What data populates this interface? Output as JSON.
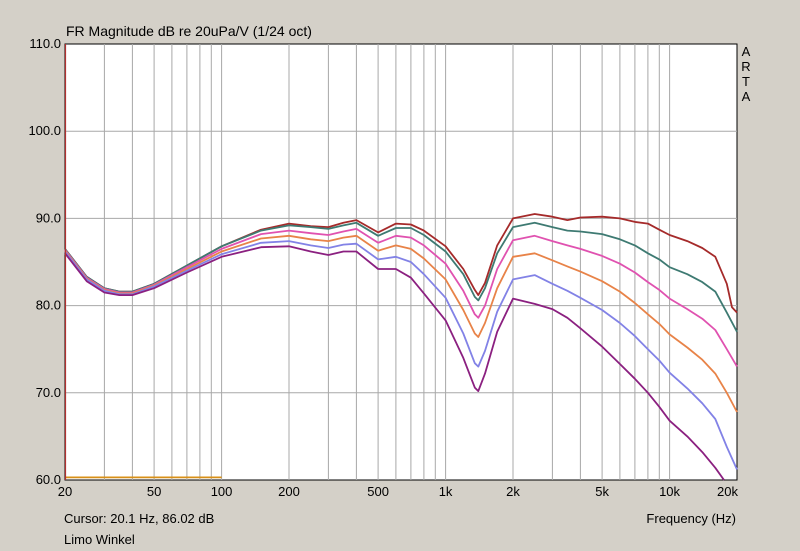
{
  "chart_data": {
    "type": "line",
    "title": "FR Magnitude dB re 20uPa/V (1/24 oct)",
    "xlabel": "Frequency (Hz)",
    "ylabel": "",
    "x_scale": "log",
    "xlim": [
      20,
      20000
    ],
    "ylim": [
      60,
      110
    ],
    "x_ticks": [
      20,
      50,
      100,
      200,
      500,
      1000,
      2000,
      5000,
      10000,
      20000
    ],
    "x_tick_labels": [
      "20",
      "50",
      "100",
      "200",
      "500",
      "1k",
      "2k",
      "5k",
      "10k",
      "20k"
    ],
    "y_ticks": [
      60,
      70,
      80,
      90,
      100,
      110
    ],
    "y_tick_labels": [
      "60.0",
      "70.0",
      "80.0",
      "90.0",
      "100.0",
      "110.0"
    ],
    "grid": true,
    "series": [
      {
        "color": "#a52a2a",
        "points": [
          [
            20,
            86.5
          ],
          [
            25,
            83.3
          ],
          [
            30,
            82.0
          ],
          [
            35,
            81.6
          ],
          [
            40,
            81.6
          ],
          [
            50,
            82.5
          ],
          [
            70,
            84.6
          ],
          [
            100,
            86.8
          ],
          [
            150,
            88.7
          ],
          [
            200,
            89.4
          ],
          [
            250,
            89.1
          ],
          [
            300,
            89.0
          ],
          [
            350,
            89.5
          ],
          [
            400,
            89.8
          ],
          [
            500,
            88.4
          ],
          [
            600,
            89.4
          ],
          [
            700,
            89.3
          ],
          [
            800,
            88.6
          ],
          [
            1000,
            86.8
          ],
          [
            1200,
            84.2
          ],
          [
            1350,
            81.8
          ],
          [
            1400,
            81.2
          ],
          [
            1500,
            82.6
          ],
          [
            1700,
            86.9
          ],
          [
            2000,
            90.0
          ],
          [
            2500,
            90.5
          ],
          [
            3000,
            90.2
          ],
          [
            3500,
            89.8
          ],
          [
            4000,
            90.1
          ],
          [
            5000,
            90.2
          ],
          [
            6000,
            90.0
          ],
          [
            7000,
            89.6
          ],
          [
            8000,
            89.4
          ],
          [
            9000,
            88.7
          ],
          [
            10000,
            88.1
          ],
          [
            12000,
            87.4
          ],
          [
            14000,
            86.6
          ],
          [
            16000,
            85.6
          ],
          [
            18000,
            82.5
          ],
          [
            19000,
            79.8
          ],
          [
            20000,
            79.2
          ]
        ]
      },
      {
        "color": "#3e7a72",
        "points": [
          [
            20,
            86.5
          ],
          [
            25,
            83.3
          ],
          [
            30,
            82.0
          ],
          [
            35,
            81.6
          ],
          [
            40,
            81.6
          ],
          [
            50,
            82.5
          ],
          [
            70,
            84.6
          ],
          [
            100,
            86.8
          ],
          [
            150,
            88.6
          ],
          [
            200,
            89.2
          ],
          [
            250,
            89.0
          ],
          [
            300,
            88.8
          ],
          [
            350,
            89.2
          ],
          [
            400,
            89.5
          ],
          [
            500,
            88.0
          ],
          [
            600,
            88.9
          ],
          [
            700,
            88.9
          ],
          [
            800,
            88.1
          ],
          [
            1000,
            86.2
          ],
          [
            1200,
            83.6
          ],
          [
            1350,
            81.0
          ],
          [
            1400,
            80.6
          ],
          [
            1500,
            82.0
          ],
          [
            1700,
            86.0
          ],
          [
            2000,
            89.0
          ],
          [
            2500,
            89.5
          ],
          [
            3000,
            89.0
          ],
          [
            3500,
            88.6
          ],
          [
            4000,
            88.5
          ],
          [
            5000,
            88.2
          ],
          [
            6000,
            87.6
          ],
          [
            7000,
            86.9
          ],
          [
            8000,
            86.0
          ],
          [
            9000,
            85.3
          ],
          [
            10000,
            84.4
          ],
          [
            12000,
            83.6
          ],
          [
            14000,
            82.7
          ],
          [
            16000,
            81.6
          ],
          [
            18000,
            79.2
          ],
          [
            20000,
            77.0
          ]
        ]
      },
      {
        "color": "#e052b0",
        "points": [
          [
            20,
            86.4
          ],
          [
            25,
            83.2
          ],
          [
            30,
            81.9
          ],
          [
            35,
            81.5
          ],
          [
            40,
            81.5
          ],
          [
            50,
            82.4
          ],
          [
            70,
            84.4
          ],
          [
            100,
            86.5
          ],
          [
            150,
            88.2
          ],
          [
            200,
            88.6
          ],
          [
            250,
            88.3
          ],
          [
            300,
            88.1
          ],
          [
            350,
            88.5
          ],
          [
            400,
            88.8
          ],
          [
            500,
            87.2
          ],
          [
            600,
            88.0
          ],
          [
            700,
            87.8
          ],
          [
            800,
            86.9
          ],
          [
            1000,
            84.8
          ],
          [
            1200,
            81.7
          ],
          [
            1350,
            79.0
          ],
          [
            1400,
            78.6
          ],
          [
            1500,
            80.0
          ],
          [
            1700,
            84.2
          ],
          [
            2000,
            87.5
          ],
          [
            2500,
            88.0
          ],
          [
            3000,
            87.4
          ],
          [
            3500,
            86.9
          ],
          [
            4000,
            86.5
          ],
          [
            5000,
            85.7
          ],
          [
            6000,
            84.8
          ],
          [
            7000,
            83.8
          ],
          [
            8000,
            82.7
          ],
          [
            9000,
            81.8
          ],
          [
            10000,
            80.8
          ],
          [
            12000,
            79.6
          ],
          [
            14000,
            78.5
          ],
          [
            16000,
            77.2
          ],
          [
            18000,
            75.0
          ],
          [
            20000,
            73.0
          ]
        ]
      },
      {
        "color": "#e88348",
        "points": [
          [
            20,
            86.3
          ],
          [
            25,
            83.1
          ],
          [
            30,
            81.8
          ],
          [
            35,
            81.4
          ],
          [
            40,
            81.4
          ],
          [
            50,
            82.3
          ],
          [
            70,
            84.2
          ],
          [
            100,
            86.2
          ],
          [
            150,
            87.7
          ],
          [
            200,
            88.0
          ],
          [
            250,
            87.6
          ],
          [
            300,
            87.4
          ],
          [
            350,
            87.8
          ],
          [
            400,
            88.0
          ],
          [
            500,
            86.3
          ],
          [
            600,
            86.9
          ],
          [
            700,
            86.5
          ],
          [
            800,
            85.4
          ],
          [
            1000,
            83.0
          ],
          [
            1200,
            79.5
          ],
          [
            1350,
            76.8
          ],
          [
            1400,
            76.4
          ],
          [
            1500,
            78.0
          ],
          [
            1700,
            82.0
          ],
          [
            2000,
            85.6
          ],
          [
            2500,
            86.0
          ],
          [
            3000,
            85.2
          ],
          [
            3500,
            84.5
          ],
          [
            4000,
            83.9
          ],
          [
            5000,
            82.8
          ],
          [
            6000,
            81.6
          ],
          [
            7000,
            80.3
          ],
          [
            8000,
            79.0
          ],
          [
            9000,
            77.9
          ],
          [
            10000,
            76.7
          ],
          [
            12000,
            75.2
          ],
          [
            14000,
            73.8
          ],
          [
            16000,
            72.2
          ],
          [
            18000,
            70.0
          ],
          [
            20000,
            67.8
          ]
        ]
      },
      {
        "color": "#8282e6",
        "points": [
          [
            20,
            86.2
          ],
          [
            25,
            83.0
          ],
          [
            30,
            81.7
          ],
          [
            35,
            81.3
          ],
          [
            40,
            81.3
          ],
          [
            50,
            82.2
          ],
          [
            70,
            84.0
          ],
          [
            100,
            85.9
          ],
          [
            150,
            87.2
          ],
          [
            200,
            87.4
          ],
          [
            250,
            86.9
          ],
          [
            300,
            86.6
          ],
          [
            350,
            87.0
          ],
          [
            400,
            87.1
          ],
          [
            500,
            85.3
          ],
          [
            600,
            85.6
          ],
          [
            700,
            85.0
          ],
          [
            800,
            83.6
          ],
          [
            1000,
            80.9
          ],
          [
            1200,
            76.8
          ],
          [
            1350,
            73.4
          ],
          [
            1400,
            73.0
          ],
          [
            1500,
            74.8
          ],
          [
            1700,
            79.3
          ],
          [
            2000,
            83.0
          ],
          [
            2500,
            83.5
          ],
          [
            3000,
            82.5
          ],
          [
            3500,
            81.7
          ],
          [
            4000,
            80.9
          ],
          [
            5000,
            79.5
          ],
          [
            6000,
            78.0
          ],
          [
            7000,
            76.5
          ],
          [
            8000,
            75.0
          ],
          [
            9000,
            73.7
          ],
          [
            10000,
            72.3
          ],
          [
            12000,
            70.5
          ],
          [
            14000,
            68.8
          ],
          [
            16000,
            67.0
          ],
          [
            18000,
            63.8
          ],
          [
            20000,
            61.2
          ]
        ]
      },
      {
        "color": "#8b2080",
        "points": [
          [
            20,
            86.0
          ],
          [
            25,
            82.8
          ],
          [
            30,
            81.5
          ],
          [
            35,
            81.2
          ],
          [
            40,
            81.2
          ],
          [
            50,
            82.0
          ],
          [
            70,
            83.8
          ],
          [
            100,
            85.6
          ],
          [
            150,
            86.7
          ],
          [
            200,
            86.8
          ],
          [
            250,
            86.2
          ],
          [
            300,
            85.8
          ],
          [
            350,
            86.2
          ],
          [
            400,
            86.2
          ],
          [
            500,
            84.2
          ],
          [
            600,
            84.2
          ],
          [
            700,
            83.2
          ],
          [
            800,
            81.4
          ],
          [
            1000,
            78.3
          ],
          [
            1200,
            74.0
          ],
          [
            1350,
            70.6
          ],
          [
            1400,
            70.2
          ],
          [
            1500,
            72.2
          ],
          [
            1700,
            77.0
          ],
          [
            2000,
            80.8
          ],
          [
            2500,
            80.2
          ],
          [
            3000,
            79.6
          ],
          [
            3500,
            78.6
          ],
          [
            4000,
            77.4
          ],
          [
            5000,
            75.3
          ],
          [
            6000,
            73.3
          ],
          [
            7000,
            71.6
          ],
          [
            8000,
            70.0
          ],
          [
            9000,
            68.4
          ],
          [
            10000,
            66.8
          ],
          [
            12000,
            65.0
          ],
          [
            14000,
            63.2
          ],
          [
            16000,
            61.4
          ],
          [
            17500,
            60.0
          ]
        ]
      },
      {
        "color": "#d89018",
        "points": [
          [
            20,
            60.3
          ],
          [
            100,
            60.3
          ]
        ]
      }
    ],
    "side_label": [
      "A",
      "R",
      "T",
      "A"
    ]
  },
  "footer": {
    "cursor": "Cursor: 20.1 Hz, 86.02 dB",
    "note": "Limo Winkel"
  }
}
